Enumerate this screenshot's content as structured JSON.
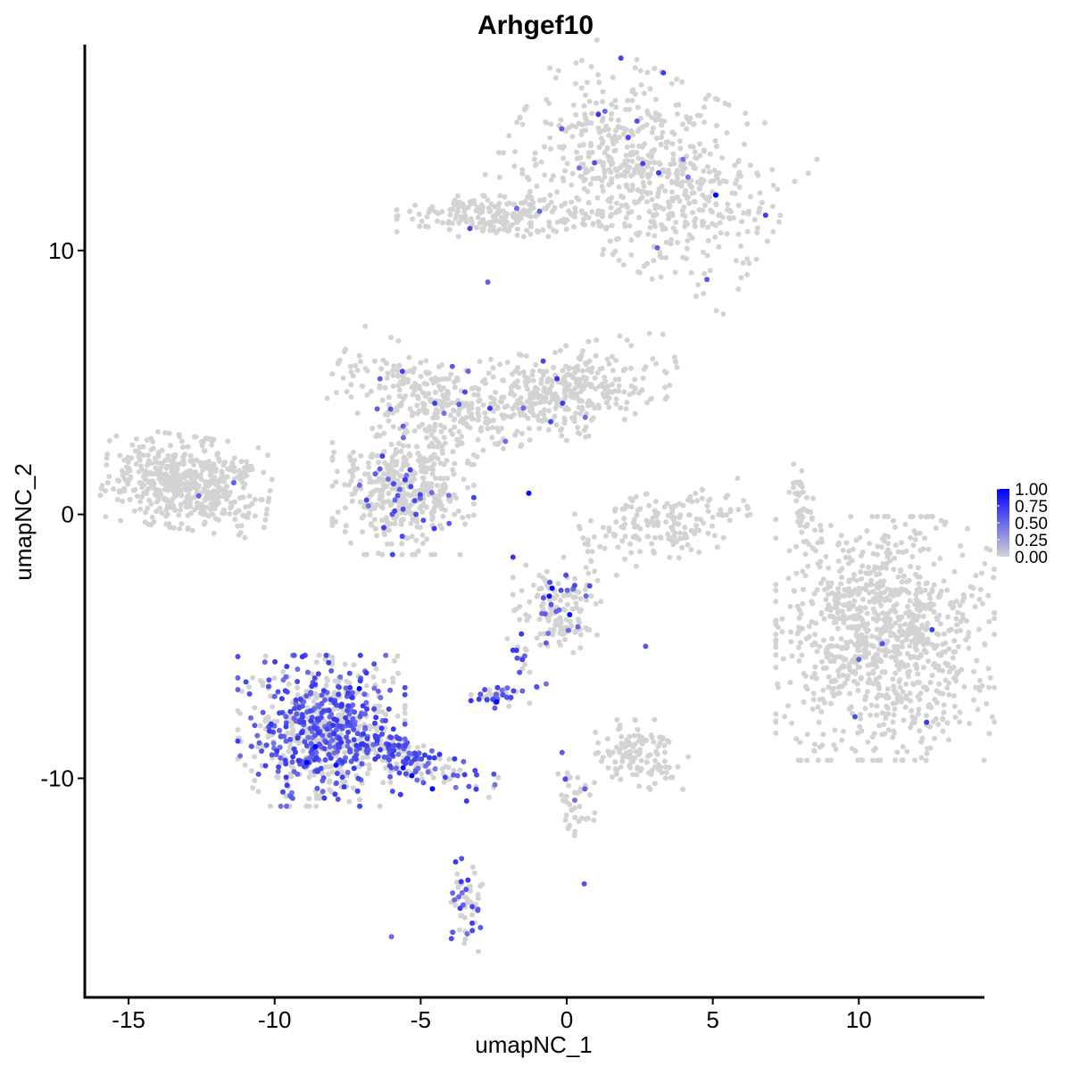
{
  "chart_data": {
    "type": "scatter",
    "title": "Arhgef10",
    "xlabel": "umapNC_1",
    "ylabel": "umapNC_2",
    "xlim": [
      -16.5,
      14.3
    ],
    "ylim": [
      -18.3,
      17.8
    ],
    "x_ticks": [
      -15,
      -10,
      -5,
      0,
      5,
      10
    ],
    "x_tick_labels": [
      "-15",
      "-10",
      "-5",
      "0",
      "5",
      "10"
    ],
    "y_ticks": [
      10,
      0,
      -10
    ],
    "y_tick_labels": [
      "10",
      "0",
      "-10"
    ],
    "grid": false,
    "legend_position": "right",
    "color_scale": {
      "low_color": "#d3d3d3",
      "high_color": "#0000ff",
      "min": 0,
      "max": 1,
      "breaks": [
        1.0,
        0.75,
        0.5,
        0.25,
        0.0
      ],
      "break_labels": [
        "1.00",
        "0.75",
        "0.50",
        "0.25",
        "0.00"
      ]
    },
    "clusters": [
      {
        "cx": -13.0,
        "cy": 1.2,
        "sx": 1.3,
        "sy": 0.8,
        "n": 520,
        "frac": 0.005,
        "rot": -0.15
      },
      {
        "cx": 2.8,
        "cy": 13.0,
        "sx": 2.2,
        "sy": 1.6,
        "n": 700,
        "frac": 0.03,
        "rot": -0.5
      },
      {
        "cx": -2.3,
        "cy": 11.3,
        "sx": 1.6,
        "sy": 0.35,
        "n": 220,
        "frac": 0.02,
        "rot": 0.0
      },
      {
        "cx": -5.0,
        "cy": 4.5,
        "sx": 1.4,
        "sy": 0.7,
        "n": 220,
        "frac": 0.06,
        "rot": -0.45
      },
      {
        "cx": -0.5,
        "cy": 4.5,
        "sx": 2.0,
        "sy": 0.8,
        "n": 430,
        "frac": 0.03,
        "rot": 0.2
      },
      {
        "cx": -5.6,
        "cy": 0.9,
        "sx": 1.1,
        "sy": 1.1,
        "n": 450,
        "frac": 0.07,
        "rot": 0.0
      },
      {
        "cx": 3.4,
        "cy": -0.4,
        "sx": 1.3,
        "sy": 0.6,
        "n": 180,
        "frac": 0.0,
        "rot": 0.3
      },
      {
        "cx": 10.9,
        "cy": -4.7,
        "sx": 1.7,
        "sy": 2.1,
        "n": 1000,
        "frac": 0.004,
        "rot": 0.0
      },
      {
        "cx": -8.4,
        "cy": -8.2,
        "sx": 1.3,
        "sy": 1.3,
        "n": 700,
        "frac": 0.45,
        "rot": 0.0
      },
      {
        "cx": -5.8,
        "cy": -9.1,
        "sx": 1.6,
        "sy": 0.35,
        "n": 220,
        "frac": 0.55,
        "rot": -0.4
      },
      {
        "cx": -0.3,
        "cy": -3.6,
        "sx": 0.7,
        "sy": 0.9,
        "n": 140,
        "frac": 0.18,
        "rot": 0.0
      },
      {
        "cx": -2.4,
        "cy": -6.9,
        "sx": 0.4,
        "sy": 0.2,
        "n": 40,
        "frac": 0.55,
        "rot": 0.0
      },
      {
        "cx": 2.4,
        "cy": -9.1,
        "sx": 0.8,
        "sy": 0.6,
        "n": 120,
        "frac": 0.01,
        "rot": 0.0
      },
      {
        "cx": 0.3,
        "cy": -11.0,
        "sx": 0.3,
        "sy": 0.9,
        "n": 40,
        "frac": 0.05,
        "rot": 0.0
      },
      {
        "cx": -3.4,
        "cy": -14.8,
        "sx": 0.25,
        "sy": 0.8,
        "n": 60,
        "frac": 0.4,
        "rot": 0.0
      },
      {
        "cx": 8.1,
        "cy": 0.4,
        "sx": 0.2,
        "sy": 0.7,
        "n": 40,
        "frac": 0.0,
        "rot": 0.2
      },
      {
        "cx": -1.4,
        "cy": -5.8,
        "sx": 0.2,
        "sy": 0.6,
        "n": 18,
        "frac": 0.6,
        "rot": 0.35
      }
    ],
    "highlight_points": [
      {
        "x": 5.1,
        "y": 12.1,
        "v": 1.0
      },
      {
        "x": -0.5,
        "y": -2.8,
        "v": 1.0
      },
      {
        "x": -0.6,
        "y": -3.1,
        "v": 0.95
      },
      {
        "x": 0.1,
        "y": -3.8,
        "v": 0.95
      },
      {
        "x": -8.6,
        "y": -8.8,
        "v": 1.0
      },
      {
        "x": -8.9,
        "y": -9.4,
        "v": 1.0
      },
      {
        "x": -7.9,
        "y": -9.5,
        "v": 0.95
      },
      {
        "x": -5.6,
        "y": -9.6,
        "v": 1.0
      },
      {
        "x": -5.3,
        "y": -9.9,
        "v": 1.0
      },
      {
        "x": -4.6,
        "y": -10.4,
        "v": 1.0
      },
      {
        "x": -7.1,
        "y": -6.6,
        "v": 1.0
      },
      {
        "x": -1.3,
        "y": 0.8,
        "v": 1.0
      },
      {
        "x": -2.4,
        "y": -7.1,
        "v": 1.0
      },
      {
        "x": -6.0,
        "y": -16.0,
        "v": 0.5
      },
      {
        "x": 0.6,
        "y": -14.0,
        "v": 0.6
      },
      {
        "x": 2.7,
        "y": -5.0,
        "v": 0.6
      },
      {
        "x": 10.8,
        "y": -4.9,
        "v": 0.6
      },
      {
        "x": 10.0,
        "y": -5.5,
        "v": 0.55
      },
      {
        "x": -12.6,
        "y": 0.7,
        "v": 0.55
      },
      {
        "x": -11.4,
        "y": 1.2,
        "v": 0.55
      },
      {
        "x": 4.8,
        "y": 8.9,
        "v": 0.6
      },
      {
        "x": -2.7,
        "y": 8.8,
        "v": 0.55
      },
      {
        "x": 3.1,
        "y": 10.1,
        "v": 0.55
      }
    ]
  }
}
